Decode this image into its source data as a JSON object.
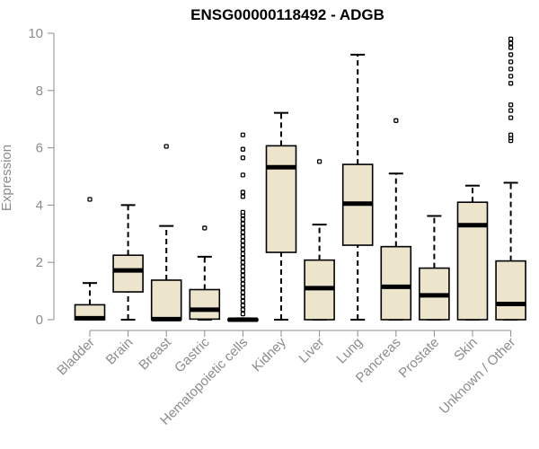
{
  "chart_data": {
    "type": "boxplot",
    "title": "ENSG00000118492 - ADGB",
    "xlabel": "",
    "ylabel": "Expression",
    "ylim": [
      0,
      10
    ],
    "yticks": [
      0,
      2,
      4,
      6,
      8,
      10
    ],
    "grid": false,
    "legend": "none",
    "colors": {
      "box_fill": "#ede4cc",
      "box_stroke": "#000000",
      "axis": "#8c8c8c"
    },
    "categories": [
      "Bladder",
      "Brain",
      "Breast",
      "Gastric",
      "Hematopoietic cells",
      "Kidney",
      "Liver",
      "Lung",
      "Pancreas",
      "Prostate",
      "Skin",
      "Unknown / Other"
    ],
    "boxes": [
      {
        "category": "Bladder",
        "whisker_low": 0,
        "q1": 0,
        "median": 0.05,
        "q3": 0.52,
        "whisker_high": 1.28,
        "outliers": [
          4.2
        ]
      },
      {
        "category": "Brain",
        "whisker_low": 0,
        "q1": 0.97,
        "median": 1.72,
        "q3": 2.25,
        "whisker_high": 4.0,
        "outliers": []
      },
      {
        "category": "Breast",
        "whisker_low": 0,
        "q1": 0,
        "median": 0.02,
        "q3": 1.38,
        "whisker_high": 3.27,
        "outliers": [
          6.05
        ]
      },
      {
        "category": "Gastric",
        "whisker_low": 0,
        "q1": 0.02,
        "median": 0.35,
        "q3": 1.05,
        "whisker_high": 2.2,
        "outliers": [
          3.2
        ]
      },
      {
        "category": "Hematopoietic cells",
        "whisker_low": 0,
        "q1": 0,
        "median": 0,
        "q3": 0.02,
        "whisker_high": 0.05,
        "outliers": [
          0.2,
          0.35,
          0.5,
          0.65,
          0.8,
          0.95,
          1.1,
          1.25,
          1.4,
          1.55,
          1.7,
          1.85,
          2.0,
          2.15,
          2.3,
          2.45,
          2.6,
          2.75,
          2.9,
          3.05,
          3.2,
          3.35,
          3.5,
          3.65,
          3.75,
          4.3,
          4.45,
          5.05,
          5.65,
          5.95,
          6.45
        ]
      },
      {
        "category": "Kidney",
        "whisker_low": 0,
        "q1": 2.35,
        "median": 5.32,
        "q3": 6.07,
        "whisker_high": 7.22,
        "outliers": []
      },
      {
        "category": "Liver",
        "whisker_low": 0,
        "q1": 0,
        "median": 1.1,
        "q3": 2.08,
        "whisker_high": 3.32,
        "outliers": [
          5.52
        ]
      },
      {
        "category": "Lung",
        "whisker_low": 0,
        "q1": 2.6,
        "median": 4.05,
        "q3": 5.42,
        "whisker_high": 9.25,
        "outliers": []
      },
      {
        "category": "Pancreas",
        "whisker_low": 0,
        "q1": 0,
        "median": 1.15,
        "q3": 2.55,
        "whisker_high": 5.1,
        "outliers": [
          6.95
        ]
      },
      {
        "category": "Prostate",
        "whisker_low": 0,
        "q1": 0,
        "median": 0.85,
        "q3": 1.8,
        "whisker_high": 3.62,
        "outliers": []
      },
      {
        "category": "Skin",
        "whisker_low": 0,
        "q1": 0,
        "median": 3.3,
        "q3": 4.1,
        "whisker_high": 4.68,
        "outliers": []
      },
      {
        "category": "Unknown / Other",
        "whisker_low": 0,
        "q1": 0,
        "median": 0.55,
        "q3": 2.05,
        "whisker_high": 4.78,
        "outliers": [
          6.25,
          6.35,
          6.45,
          7.05,
          7.3,
          7.5,
          8.25,
          8.5,
          8.75,
          9.0,
          9.25,
          9.5,
          9.65,
          9.8
        ]
      }
    ]
  }
}
